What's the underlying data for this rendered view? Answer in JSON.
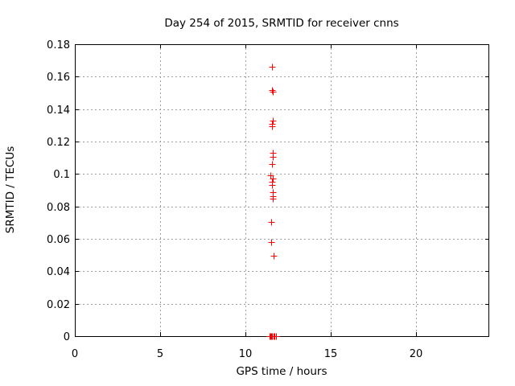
{
  "chart_data": {
    "type": "scatter",
    "title": "Day 254 of 2015, SRMTID for receiver cnns",
    "xlabel": "GPS time / hours",
    "ylabel": "SRMTID / TECUs",
    "xlim": [
      0,
      24.3
    ],
    "ylim": [
      0,
      0.18
    ],
    "xtick_values": [
      0,
      5,
      10,
      15,
      20
    ],
    "xtick_labels": [
      "0",
      "5",
      "10",
      "15",
      "20"
    ],
    "ytick_values": [
      0,
      0.02,
      0.04,
      0.06,
      0.08,
      0.1,
      0.12,
      0.14,
      0.16,
      0.18
    ],
    "ytick_labels": [
      "0",
      "0.02",
      "0.04",
      "0.06",
      "0.08",
      "0.1",
      "0.12",
      "0.14",
      "0.16",
      "0.18"
    ],
    "grid": true,
    "legend_position": "none",
    "marker": "plus",
    "colors": {
      "marker": "#ff0000",
      "grid": "#9e9e9e",
      "axis": "#000000",
      "background": "#ffffff"
    },
    "series": [
      {
        "name": "SRMTID",
        "points": [
          [
            11.58,
            0.166
          ],
          [
            11.55,
            0.1515
          ],
          [
            11.61,
            0.1508
          ],
          [
            11.6,
            0.1329
          ],
          [
            11.57,
            0.1308
          ],
          [
            11.54,
            0.1292
          ],
          [
            11.59,
            0.113
          ],
          [
            11.59,
            0.1105
          ],
          [
            11.57,
            0.1063
          ],
          [
            11.45,
            0.099
          ],
          [
            11.62,
            0.0972
          ],
          [
            11.58,
            0.095
          ],
          [
            11.55,
            0.0934
          ],
          [
            11.59,
            0.089
          ],
          [
            11.62,
            0.0863
          ],
          [
            11.62,
            0.0846
          ],
          [
            11.49,
            0.0705
          ],
          [
            11.49,
            0.0578
          ],
          [
            11.64,
            0.0497
          ],
          [
            11.4,
            0.0
          ],
          [
            11.46,
            0.0
          ],
          [
            11.52,
            0.0
          ],
          [
            11.58,
            0.0
          ],
          [
            11.64,
            0.0
          ],
          [
            11.7,
            0.0
          ],
          [
            11.8,
            0.0
          ]
        ]
      }
    ]
  }
}
